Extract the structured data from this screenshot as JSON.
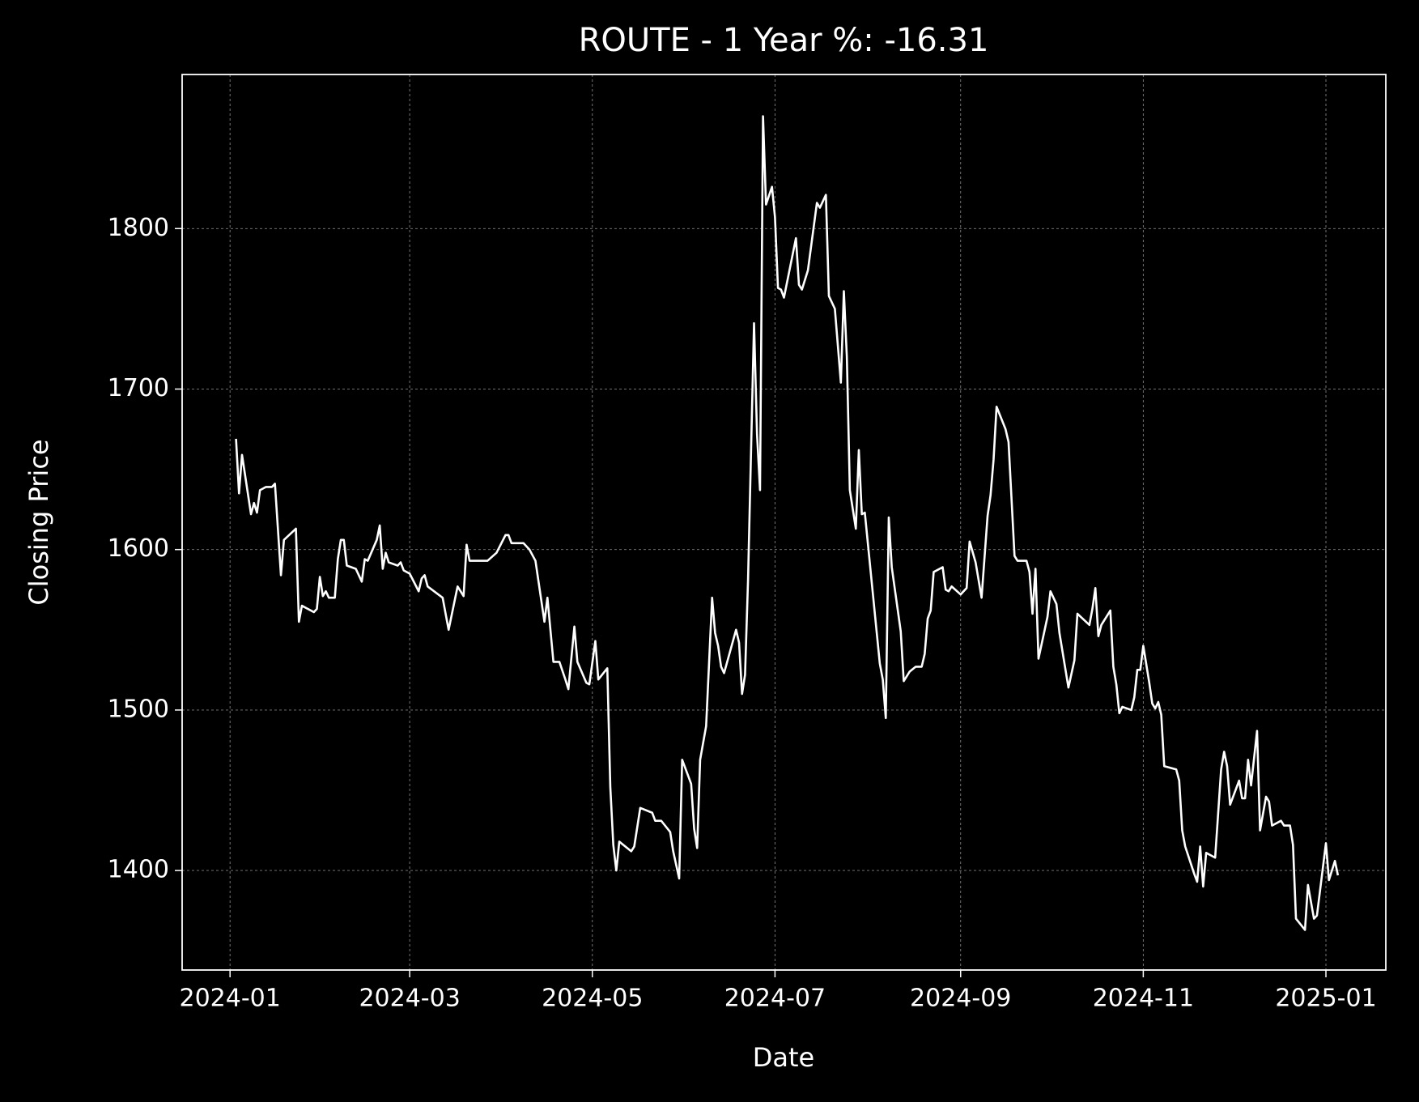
{
  "chart_data": {
    "type": "line",
    "title": "ROUTE - 1 Year %: -16.31",
    "x_label": "Date",
    "y_label": "Closing Price",
    "grid": true,
    "xlim": [
      19707,
      20109
    ],
    "ylim": [
      1338,
      1896
    ],
    "xticks": [
      {
        "value": 19723,
        "label": "2024-01"
      },
      {
        "value": 19783,
        "label": "2024-03"
      },
      {
        "value": 19844,
        "label": "2024-05"
      },
      {
        "value": 19905,
        "label": "2024-07"
      },
      {
        "value": 19967,
        "label": "2024-09"
      },
      {
        "value": 20028,
        "label": "2024-11"
      },
      {
        "value": 20089,
        "label": "2025-01"
      }
    ],
    "yticks": [
      1400,
      1500,
      1600,
      1700,
      1800
    ],
    "x": [
      19725,
      19726,
      19727,
      19730,
      19731,
      19732,
      19733,
      19735,
      19737,
      19738,
      19740,
      19741,
      19745,
      19746,
      19747,
      19751,
      19752,
      19753,
      19754,
      19755,
      19756,
      19758,
      19759,
      19760,
      19761,
      19762,
      19765,
      19767,
      19768,
      19769,
      19772,
      19773,
      19774,
      19775,
      19776,
      19779,
      19780,
      19781,
      19783,
      19786,
      19787,
      19788,
      19789,
      19794,
      19796,
      19799,
      19801,
      19802,
      19803,
      19809,
      19812,
      19815,
      19816,
      19817,
      19821,
      19823,
      19825,
      19828,
      19829,
      19831,
      19833,
      19835,
      19836,
      19838,
      19839,
      19842,
      19843,
      19845,
      19846,
      19849,
      19850,
      19851,
      19852,
      19853,
      19857,
      19858,
      19860,
      19864,
      19865,
      19867,
      19870,
      19871,
      19873,
      19874,
      19877,
      19878,
      19879,
      19880,
      19882,
      19884,
      19885,
      19886,
      19887,
      19888,
      19892,
      19893,
      19894,
      19895,
      19896,
      19898,
      19899,
      19900,
      19901,
      19902,
      19904,
      19905,
      19906,
      19907,
      19908,
      19912,
      19913,
      19914,
      19916,
      19919,
      19920,
      19922,
      19923,
      19925,
      19927,
      19928,
      19929,
      19930,
      19932,
      19933,
      19934,
      19935,
      19940,
      19941,
      19942,
      19943,
      19944,
      19947,
      19948,
      19950,
      19952,
      19954,
      19955,
      19956,
      19957,
      19958,
      19961,
      19962,
      19963,
      19964,
      19967,
      19969,
      19970,
      19972,
      19974,
      19976,
      19977,
      19978,
      19979,
      19982,
      19983,
      19985,
      19986,
      19989,
      19990,
      19991,
      19992,
      19993,
      19996,
      19997,
      19999,
      20000,
      20003,
      20005,
      20006,
      20010,
      20011,
      20012,
      20013,
      20014,
      20017,
      20018,
      20019,
      20020,
      20021,
      20024,
      20025,
      20026,
      20027,
      20028,
      20030,
      20031,
      20032,
      20033,
      20034,
      20035,
      20039,
      20040,
      20041,
      20042,
      20045,
      20046,
      20047,
      20048,
      20049,
      20051,
      20052,
      20054,
      20055,
      20056,
      20057,
      20060,
      20061,
      20062,
      20063,
      20064,
      20066,
      20067,
      20069,
      20070,
      20071,
      20074,
      20075,
      20077,
      20078,
      20079,
      20082,
      20083,
      20085,
      20086,
      20089,
      20090,
      20092,
      20093
    ],
    "series": [
      {
        "color": "#ffffff",
        "values": [
          1669,
          1635,
          1659,
          1622,
          1629,
          1623,
          1637,
          1639,
          1639,
          1641,
          1584,
          1606,
          1613,
          1555,
          1565,
          1561,
          1563,
          1583,
          1571,
          1574,
          1570,
          1570,
          1594,
          1606,
          1606,
          1590,
          1588,
          1580,
          1594,
          1593,
          1606,
          1615,
          1588,
          1598,
          1592,
          1590,
          1592,
          1587,
          1585,
          1574,
          1582,
          1584,
          1577,
          1570,
          1550,
          1577,
          1571,
          1603,
          1593,
          1593,
          1598,
          1609,
          1609,
          1604,
          1604,
          1600,
          1593,
          1555,
          1570,
          1530,
          1530,
          1519,
          1513,
          1552,
          1530,
          1517,
          1516,
          1543,
          1519,
          1526,
          1452,
          1416,
          1400,
          1418,
          1412,
          1415,
          1439,
          1436,
          1431,
          1431,
          1424,
          1412,
          1395,
          1469,
          1454,
          1426,
          1414,
          1469,
          1490,
          1570,
          1548,
          1540,
          1527,
          1523,
          1550,
          1542,
          1510,
          1522,
          1581,
          1741,
          1672,
          1637,
          1870,
          1815,
          1826,
          1807,
          1763,
          1762,
          1757,
          1794,
          1765,
          1762,
          1774,
          1816,
          1813,
          1821,
          1758,
          1750,
          1704,
          1761,
          1720,
          1637,
          1613,
          1662,
          1622,
          1623,
          1529,
          1519,
          1495,
          1620,
          1589,
          1549,
          1518,
          1524,
          1527,
          1527,
          1535,
          1557,
          1562,
          1586,
          1589,
          1575,
          1574,
          1577,
          1572,
          1576,
          1605,
          1592,
          1570,
          1621,
          1634,
          1656,
          1689,
          1675,
          1667,
          1596,
          1593,
          1593,
          1586,
          1560,
          1588,
          1532,
          1558,
          1574,
          1566,
          1548,
          1514,
          1531,
          1560,
          1553,
          1563,
          1576,
          1546,
          1553,
          1562,
          1527,
          1516,
          1498,
          1502,
          1500,
          1508,
          1525,
          1525,
          1540,
          1517,
          1504,
          1501,
          1505,
          1497,
          1465,
          1463,
          1456,
          1425,
          1415,
          1398,
          1393,
          1415,
          1390,
          1411,
          1409,
          1408,
          1463,
          1474,
          1465,
          1441,
          1456,
          1445,
          1445,
          1469,
          1453,
          1487,
          1425,
          1446,
          1443,
          1428,
          1431,
          1428,
          1428,
          1416,
          1370,
          1363,
          1391,
          1370,
          1372,
          1417,
          1394,
          1406,
          1397
        ]
      }
    ]
  }
}
